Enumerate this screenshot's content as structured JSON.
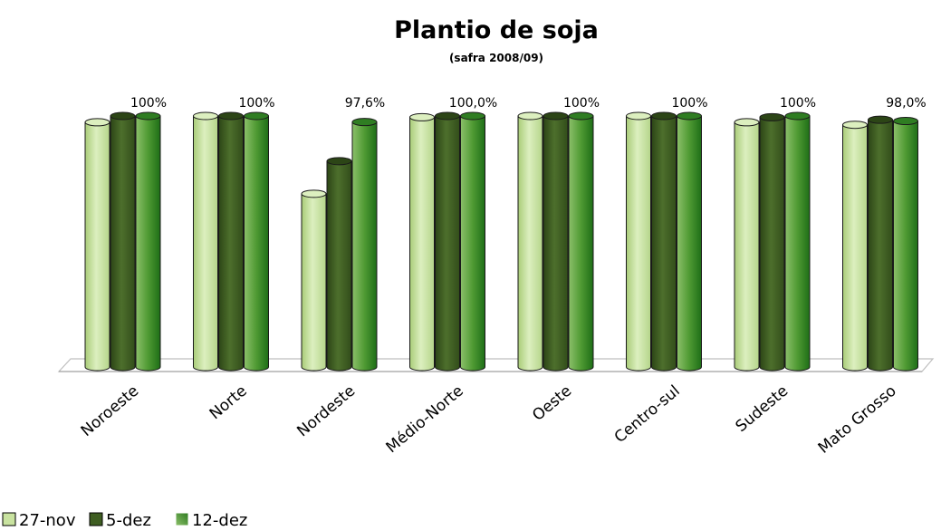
{
  "chart_data": {
    "type": "bar",
    "title": "Plantio de soja",
    "subtitle": "(safra 2008/09)",
    "categories": [
      "Noroeste",
      "Norte",
      "Nordeste",
      "Médio-Norte",
      "Oeste",
      "Centro-sul",
      "Sudeste",
      "Mato Grosso"
    ],
    "series": [
      {
        "name": "27-nov",
        "values": [
          97.5,
          100,
          69,
          99.5,
          100,
          100,
          97.5,
          96.5
        ]
      },
      {
        "name": "5-dez",
        "values": [
          100,
          100,
          82,
          100,
          100,
          100,
          99.5,
          98.5
        ]
      },
      {
        "name": "12-dez",
        "values": [
          100,
          100,
          97.6,
          100,
          100,
          100,
          100,
          98.0
        ]
      }
    ],
    "data_labels": [
      "100%",
      "100%",
      "97,6%",
      "100,0%",
      "100%",
      "100%",
      "100%",
      "98,0%"
    ],
    "ylim": [
      0,
      100
    ],
    "grid": false,
    "legend_position": "bottom-left",
    "colors": [
      "#c9e3a0",
      "#3f5e22",
      "#4f9a33"
    ]
  }
}
